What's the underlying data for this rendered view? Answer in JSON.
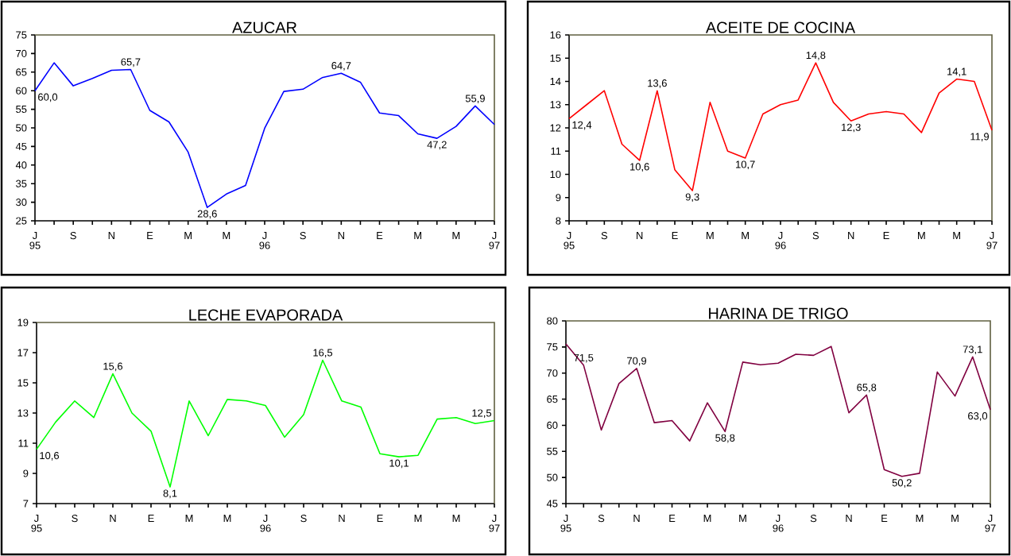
{
  "chart_data": [
    {
      "type": "line",
      "title": "AZUCAR",
      "color": "#0000ff",
      "categories": [
        "J",
        null,
        "S",
        null,
        "N",
        null,
        "E",
        null,
        "M",
        null,
        "M",
        null,
        "J",
        null,
        "S",
        null,
        "N",
        null,
        "E",
        null,
        "M",
        null,
        "M",
        null,
        "J"
      ],
      "values": [
        60.0,
        67.5,
        61.3,
        63.3,
        65.5,
        65.7,
        54.7,
        51.6,
        43.5,
        28.6,
        32.2,
        34.5,
        49.9,
        59.8,
        60.4,
        63.5,
        64.7,
        62.3,
        54.0,
        53.3,
        48.4,
        47.2,
        50.4,
        55.9,
        50.9
      ],
      "value_labels": [
        "60,0",
        null,
        null,
        null,
        null,
        "65,7",
        null,
        null,
        null,
        "28,6",
        null,
        null,
        null,
        null,
        null,
        null,
        "64,7",
        null,
        null,
        null,
        null,
        "47,2",
        null,
        "55,9",
        null
      ],
      "ylim": [
        25,
        75
      ],
      "yticks": [
        25,
        30,
        35,
        40,
        45,
        50,
        55,
        60,
        65,
        70,
        75
      ],
      "annotations": [
        "95",
        "96",
        "97"
      ]
    },
    {
      "type": "line",
      "title": "ACEITE DE COCINA",
      "color": "#ff0000",
      "categories": [
        "J",
        null,
        "S",
        null,
        "N",
        null,
        "E",
        null,
        "M",
        null,
        "M",
        null,
        "J",
        null,
        "S",
        null,
        "N",
        null,
        "E",
        null,
        "M",
        null,
        "M",
        null,
        "J"
      ],
      "values": [
        12.4,
        13.0,
        13.6,
        11.3,
        10.6,
        13.6,
        10.2,
        9.3,
        13.1,
        11.0,
        10.7,
        12.6,
        13.0,
        13.2,
        14.8,
        13.1,
        12.3,
        12.6,
        12.7,
        12.6,
        11.8,
        13.5,
        14.1,
        14.0,
        11.9
      ],
      "value_labels": [
        "12,4",
        null,
        null,
        null,
        "10,6",
        "13,6",
        null,
        "9,3",
        null,
        null,
        "10,7",
        null,
        null,
        null,
        "14,8",
        null,
        "12,3",
        null,
        null,
        null,
        null,
        null,
        "14,1",
        null,
        "11,9"
      ],
      "ylim": [
        8,
        16
      ],
      "yticks": [
        8,
        9,
        10,
        11,
        12,
        13,
        14,
        15,
        16
      ],
      "annotations": [
        "95",
        "96",
        "97"
      ]
    },
    {
      "type": "line",
      "title": "LECHE EVAPORADA",
      "color": "#00ff00",
      "categories": [
        "J",
        null,
        "S",
        null,
        "N",
        null,
        "E",
        null,
        "M",
        null,
        "M",
        null,
        "J",
        null,
        "S",
        null,
        "N",
        null,
        "E",
        null,
        "M",
        null,
        "M",
        null,
        "J"
      ],
      "values": [
        10.6,
        12.4,
        13.8,
        12.7,
        15.6,
        13.0,
        11.8,
        8.1,
        13.8,
        11.5,
        13.9,
        13.8,
        13.5,
        11.4,
        12.9,
        16.5,
        13.8,
        13.4,
        10.3,
        10.1,
        10.2,
        12.6,
        12.7,
        12.3,
        12.5
      ],
      "value_labels": [
        "10,6",
        null,
        null,
        null,
        "15,6",
        null,
        null,
        "8,1",
        null,
        null,
        null,
        null,
        null,
        null,
        null,
        "16,5",
        null,
        null,
        null,
        "10,1",
        null,
        null,
        null,
        null,
        "12,5"
      ],
      "ylim": [
        7,
        19
      ],
      "yticks": [
        7,
        9,
        11,
        13,
        15,
        17,
        19
      ],
      "annotations": [
        "95",
        "96",
        "97"
      ]
    },
    {
      "type": "line",
      "title": "HARINA DE TRIGO",
      "color": "#800040",
      "categories": [
        "J",
        null,
        "S",
        null,
        "N",
        null,
        "E",
        null,
        "M",
        null,
        "M",
        null,
        "J",
        null,
        "S",
        null,
        "N",
        null,
        "E",
        null,
        "M",
        null,
        "M",
        null,
        "J"
      ],
      "values": [
        75.6,
        71.5,
        59.1,
        68.0,
        70.9,
        60.5,
        60.9,
        57.0,
        64.3,
        58.8,
        72.1,
        71.6,
        71.9,
        73.6,
        73.4,
        75.1,
        62.4,
        65.8,
        51.5,
        50.2,
        50.8,
        70.2,
        65.6,
        73.1,
        63.0
      ],
      "value_labels": [
        null,
        "71,5",
        null,
        null,
        "70,9",
        null,
        null,
        null,
        null,
        "58,8",
        null,
        null,
        null,
        null,
        null,
        null,
        null,
        "65,8",
        null,
        "50,2",
        null,
        null,
        null,
        "73,1",
        "63,0"
      ],
      "ylim": [
        45,
        80
      ],
      "yticks": [
        45,
        50,
        55,
        60,
        65,
        70,
        75,
        80
      ],
      "annotations": [
        "95",
        "96",
        "97"
      ]
    }
  ]
}
